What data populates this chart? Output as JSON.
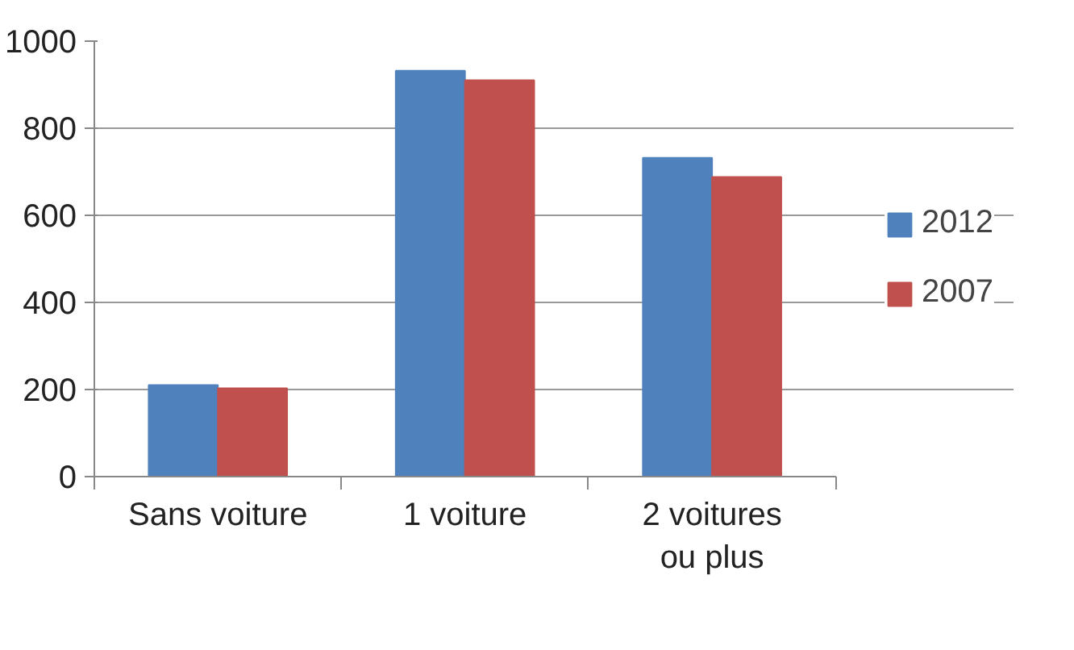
{
  "chart_data": {
    "type": "bar",
    "categories": [
      "Sans voiture",
      "1 voiture",
      "2 voitures\nou plus"
    ],
    "series": [
      {
        "name": "2012",
        "color": "#4f81bd",
        "values": [
          210,
          932,
          732
        ]
      },
      {
        "name": "2007",
        "color": "#c0504d",
        "values": [
          203,
          910,
          688
        ]
      }
    ],
    "ylim": [
      0,
      1000
    ],
    "yticks": [
      0,
      200,
      400,
      600,
      800,
      1000
    ],
    "grid": "y",
    "legend": "right"
  }
}
